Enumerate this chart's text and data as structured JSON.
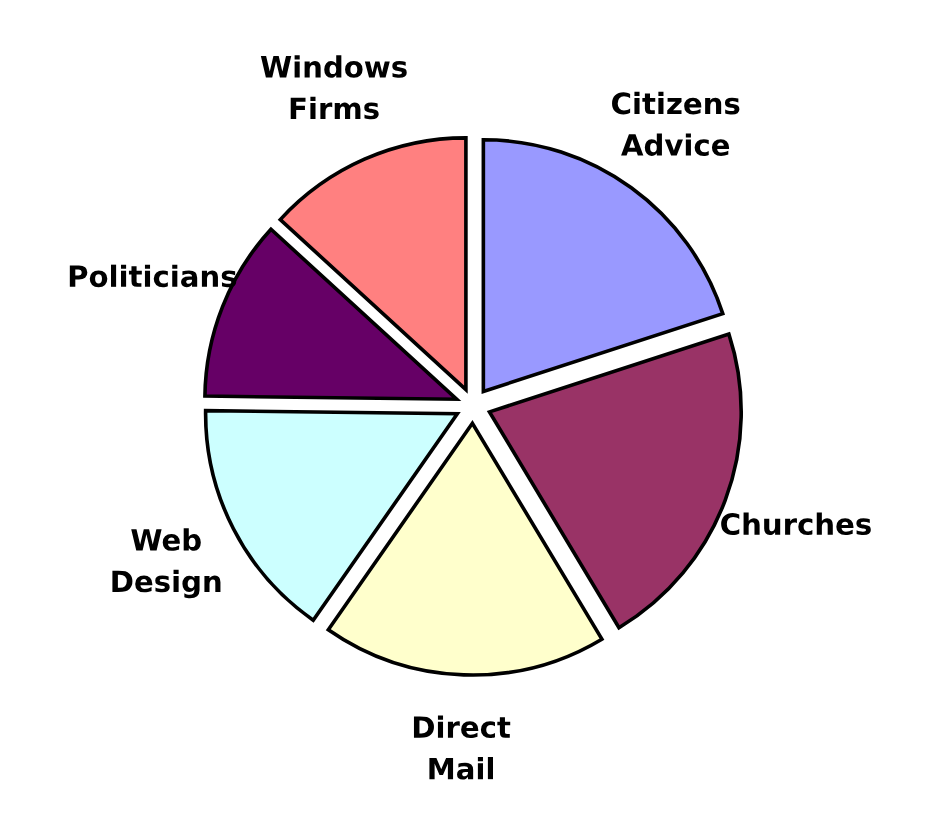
{
  "chart_data": {
    "type": "pie",
    "categories": [
      "Citizens\nAdvice",
      "Churches",
      "Direct\nMail",
      "Web\nDesign",
      "Politicians",
      "Windows\nFirms"
    ],
    "values": [
      20,
      21.4,
      18.3,
      15.5,
      11.6,
      13.2
    ],
    "colors": [
      "#9999ff",
      "#993366",
      "#ffffcc",
      "#ccffff",
      "#660066",
      "#ff8080"
    ],
    "legend": false
  }
}
